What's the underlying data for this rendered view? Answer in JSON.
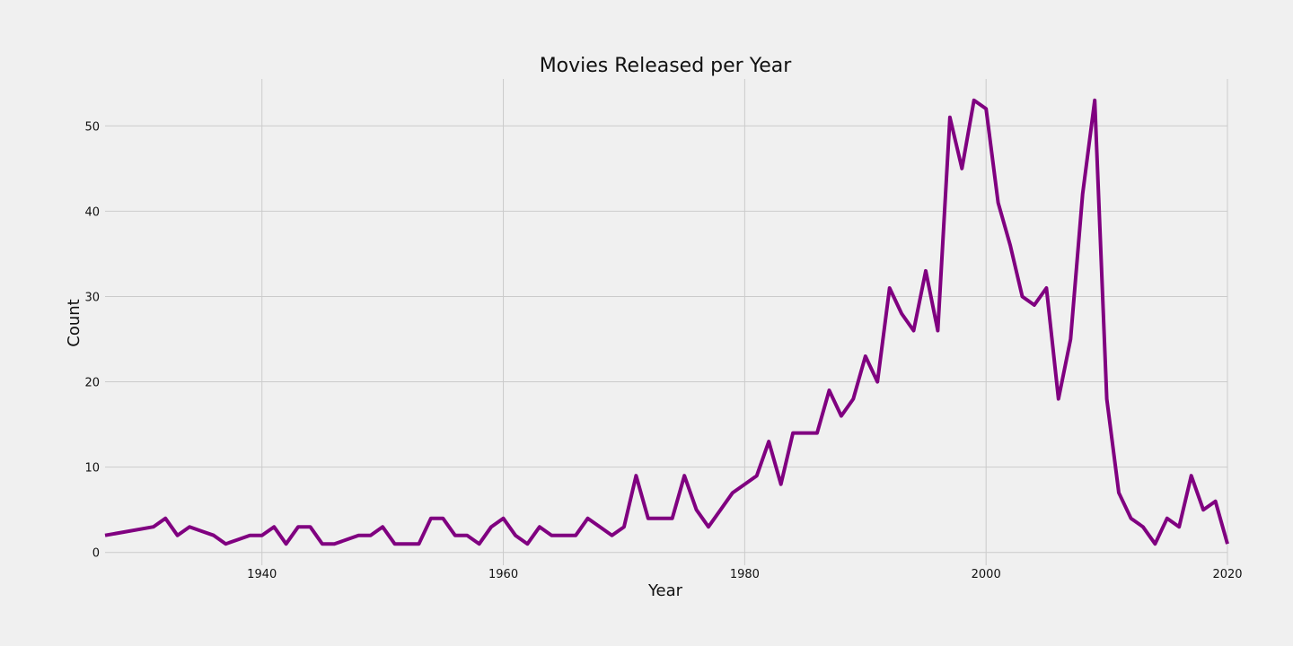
{
  "chart_data": {
    "type": "line",
    "title": "Movies Released per Year",
    "xlabel": "Year",
    "ylabel": "Count",
    "xlim": [
      1927,
      2020
    ],
    "ylim": [
      -1.5,
      55.5
    ],
    "xticks": [
      1940,
      1960,
      1980,
      2000,
      2020
    ],
    "yticks": [
      0,
      10,
      20,
      30,
      40,
      50
    ],
    "grid": true,
    "line_color": "#800080",
    "background": "#f0f0f0",
    "series": [
      {
        "x": [
          1927,
          1931,
          1932,
          1933,
          1934,
          1935,
          1936,
          1937,
          1938,
          1939,
          1940,
          1941,
          1942,
          1943,
          1944,
          1945,
          1946,
          1947,
          1948,
          1949,
          1950,
          1951,
          1952,
          1953,
          1954,
          1955,
          1956,
          1957,
          1958,
          1959,
          1960,
          1961,
          1962,
          1963,
          1964,
          1965,
          1966,
          1967,
          1968,
          1969,
          1970,
          1971,
          1972,
          1973,
          1974,
          1975,
          1976,
          1977,
          1978,
          1979,
          1980,
          1981,
          1982,
          1983,
          1984,
          1985,
          1986,
          1987,
          1988,
          1989,
          1990,
          1991,
          1992,
          1993,
          1994,
          1995,
          1996,
          1997,
          1998,
          1999,
          2000,
          2001,
          2002,
          2003,
          2004,
          2005,
          2006,
          2007,
          2008,
          2009,
          2010,
          2011,
          2012,
          2013,
          2014,
          2015,
          2016,
          2017,
          2018,
          2019,
          2020
        ],
        "values": [
          2,
          3,
          4,
          2,
          3,
          2.5,
          2,
          1,
          1.5,
          2,
          2,
          3,
          1,
          3,
          3,
          1,
          1,
          1.5,
          2,
          2,
          3,
          1,
          1,
          1,
          4,
          4,
          2,
          2,
          1,
          3,
          4,
          2,
          1,
          3,
          2,
          2,
          2,
          4,
          3,
          2,
          3,
          9,
          4,
          4,
          4,
          9,
          5,
          3,
          5,
          7,
          8,
          9,
          13,
          8,
          14,
          14,
          14,
          19,
          16,
          18,
          23,
          20,
          31,
          28,
          26,
          33,
          26,
          51,
          45,
          53,
          52,
          41,
          36,
          30,
          29,
          31,
          18,
          25,
          42,
          53,
          18,
          7,
          4,
          3,
          1,
          4,
          3,
          9,
          5,
          6,
          1
        ]
      }
    ]
  }
}
